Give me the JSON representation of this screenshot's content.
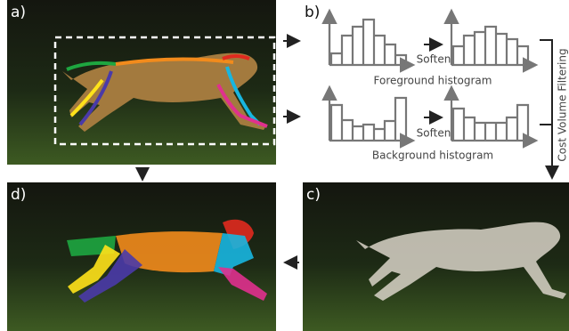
{
  "panels": [
    {
      "label": "a)"
    },
    {
      "label": "b)"
    },
    {
      "label": "c)"
    },
    {
      "label": "d)"
    }
  ],
  "histograms": {
    "foreground": {
      "operation": "Soften",
      "label": "Foreground histogram"
    },
    "background": {
      "operation": "Soften",
      "label": "Background histogram"
    }
  },
  "filtering": {
    "label": "Cost Volume Filtering"
  }
}
